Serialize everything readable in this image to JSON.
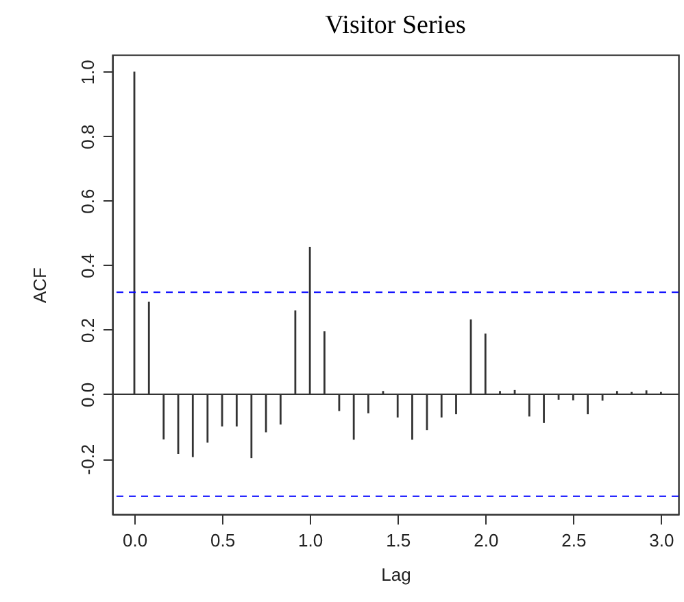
{
  "chart_data": {
    "type": "bar",
    "title": "Visitor Series",
    "xlabel": "Lag",
    "ylabel": "ACF",
    "x": [
      0,
      0.083,
      0.167,
      0.25,
      0.333,
      0.417,
      0.5,
      0.583,
      0.667,
      0.75,
      0.833,
      0.917,
      1,
      1.083,
      1.167,
      1.25,
      1.333,
      1.417,
      1.5,
      1.583,
      1.667,
      1.75,
      1.833,
      1.917,
      2,
      2.083,
      2.167,
      2.25,
      2.333,
      2.417,
      2.5,
      2.583,
      2.667,
      2.75,
      2.833,
      2.917,
      3
    ],
    "values": [
      1.0,
      0.287,
      -0.14,
      -0.185,
      -0.195,
      -0.15,
      -0.1,
      -0.1,
      -0.198,
      -0.118,
      -0.094,
      0.26,
      0.457,
      0.195,
      -0.052,
      -0.141,
      -0.059,
      0.01,
      -0.072,
      -0.141,
      -0.111,
      -0.072,
      -0.062,
      0.232,
      0.188,
      0.01,
      0.013,
      -0.069,
      -0.089,
      -0.017,
      -0.019,
      -0.062,
      -0.02,
      0.01,
      0.007,
      0.012,
      0.007
    ],
    "color": "#333333",
    "xlim": [
      -0.125,
      3.1
    ],
    "ylim": [
      -0.372,
      1.052
    ],
    "xticks": [
      {
        "value": 0,
        "label": "0.0"
      },
      {
        "value": 0.5,
        "label": "0.5"
      },
      {
        "value": 1,
        "label": "1.0"
      },
      {
        "value": 1.5,
        "label": "1.5"
      },
      {
        "value": 2,
        "label": "2.0"
      },
      {
        "value": 2.5,
        "label": "2.5"
      },
      {
        "value": 3,
        "label": "3.0"
      }
    ],
    "yticks": [
      {
        "value": -0.2,
        "label": "-0.2"
      },
      {
        "value": 0,
        "label": "0.0"
      },
      {
        "value": 0.2,
        "label": "0.2"
      },
      {
        "value": 0.4,
        "label": "0.4"
      },
      {
        "value": 0.6,
        "label": "0.6"
      },
      {
        "value": 0.8,
        "label": "0.8"
      },
      {
        "value": 1,
        "label": "1.0"
      }
    ],
    "ref_lines": [
      {
        "axis": "y",
        "value": 0,
        "color": "#333333",
        "line_style": "solid"
      },
      {
        "axis": "y",
        "value": 0.316,
        "color": "#0000ff",
        "line_style": "dashed"
      },
      {
        "axis": "y",
        "value": -0.316,
        "color": "#0000ff",
        "line_style": "dashed"
      }
    ],
    "grid": false
  }
}
